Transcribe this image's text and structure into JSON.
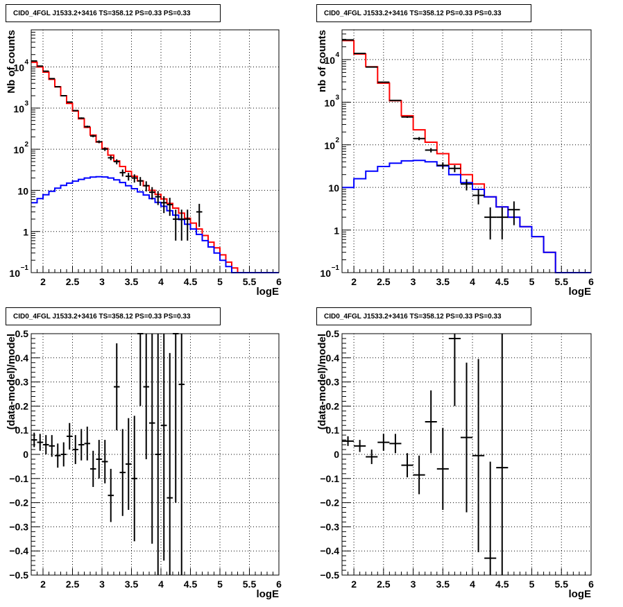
{
  "chart_data": [
    {
      "id": "counts-left",
      "type": "line",
      "title": "CID0_4FGL J1533.2+3416 TS=358.12 PS=0.33 PS=0.33",
      "xlabel": "logE",
      "ylabel": "Nb of counts",
      "xlim": [
        1.8,
        6.0
      ],
      "ylim": [
        0.1,
        80000
      ],
      "yscale": "log",
      "grid": true,
      "x_ticks": [
        2,
        2.5,
        3,
        3.5,
        4,
        4.5,
        5,
        5.5,
        6
      ],
      "x_tick_labels": [
        "2",
        "2.5",
        "3",
        "3.5",
        "4",
        "4.5",
        "5",
        "5.5",
        "6"
      ],
      "y_ticks": [
        0.1,
        1,
        10,
        100,
        1000,
        10000
      ],
      "y_tick_labels": [
        [
          "10",
          "−1"
        ],
        [
          "1",
          ""
        ],
        [
          "10",
          ""
        ],
        [
          "10",
          "2"
        ],
        [
          "10",
          "3"
        ],
        [
          "10",
          "4"
        ]
      ],
      "bin_width": 0.1,
      "series": [
        {
          "color": "#ff0000",
          "style": "step",
          "x": [
            1.8,
            1.9,
            2.0,
            2.1,
            2.2,
            2.3,
            2.4,
            2.5,
            2.6,
            2.7,
            2.8,
            2.9,
            3.0,
            3.1,
            3.2,
            3.3,
            3.4,
            3.5,
            3.6,
            3.7,
            3.8,
            3.9,
            4.0,
            4.1,
            4.2,
            4.3,
            4.4,
            4.5,
            4.6,
            4.7,
            4.8,
            4.9,
            5.0,
            5.1,
            5.2,
            5.3,
            5.4,
            5.5,
            5.6,
            5.7,
            5.8,
            5.9
          ],
          "values": [
            13000,
            10000,
            7500,
            5000,
            3300,
            2000,
            1300,
            850,
            550,
            340,
            220,
            150,
            105,
            72,
            52,
            38,
            29,
            22,
            17,
            13,
            10,
            8,
            6.2,
            4.8,
            3.7,
            2.8,
            2.1,
            1.6,
            1.15,
            0.8,
            0.55,
            0.4,
            0.27,
            0.18,
            0.13,
            0.1,
            0.1,
            0.1,
            0.1,
            0.1,
            0.1,
            0.1
          ]
        },
        {
          "color": "#0000ff",
          "style": "step",
          "x": [
            1.8,
            1.9,
            2.0,
            2.1,
            2.2,
            2.3,
            2.4,
            2.5,
            2.6,
            2.7,
            2.8,
            2.9,
            3.0,
            3.1,
            3.2,
            3.3,
            3.4,
            3.5,
            3.6,
            3.7,
            3.8,
            3.9,
            4.0,
            4.1,
            4.2,
            4.3,
            4.4,
            4.5,
            4.6,
            4.7,
            4.8,
            4.9,
            5.0,
            5.1,
            5.2,
            5.3,
            5.4,
            5.5,
            5.6,
            5.7,
            5.8,
            5.9
          ],
          "values": [
            5,
            6.3,
            7.8,
            9.5,
            11.3,
            13.2,
            15,
            16.8,
            18.5,
            20,
            21,
            21.5,
            21.2,
            20,
            18,
            15.5,
            13,
            11,
            9.2,
            7.7,
            6.3,
            5.1,
            4.1,
            3.2,
            2.5,
            1.95,
            1.5,
            1.15,
            0.85,
            0.6,
            0.42,
            0.3,
            0.2,
            0.14,
            0.1,
            0.1,
            0.1,
            0.1,
            0.1,
            0.1,
            0.1,
            0.1
          ]
        },
        {
          "color": "#000000",
          "style": "errorbar",
          "x": [
            1.85,
            1.95,
            2.05,
            2.15,
            2.25,
            2.35,
            2.45,
            2.55,
            2.65,
            2.75,
            2.85,
            2.95,
            3.05,
            3.15,
            3.25,
            3.35,
            3.45,
            3.55,
            3.65,
            3.75,
            3.85,
            3.95,
            4.05,
            4.15,
            4.25,
            4.35,
            4.45,
            4.65
          ],
          "values": [
            14000,
            10500,
            7900,
            5200,
            3300,
            2000,
            1400,
            870,
            570,
            355,
            210,
            152,
            101,
            62,
            50,
            27,
            22,
            20,
            17,
            13,
            9,
            7,
            5,
            4.5,
            2,
            2,
            2,
            3
          ],
          "errors": [
            120,
            100,
            90,
            70,
            58,
            45,
            37,
            30,
            24,
            19,
            14,
            12,
            10,
            8,
            7,
            5.2,
            4.7,
            4.5,
            4.1,
            3.6,
            3,
            2.6,
            2.2,
            2.1,
            1.4,
            1.4,
            1.4,
            1.7
          ]
        }
      ]
    },
    {
      "id": "counts-right",
      "type": "line",
      "title": "CID0_4FGL J1533.2+3416 TS=358.12 PS=0.33 PS=0.33",
      "xlabel": "logE",
      "ylabel": "nb of counts",
      "xlim": [
        1.8,
        6.0
      ],
      "ylim": [
        0.1,
        50000
      ],
      "yscale": "log",
      "grid": true,
      "x_ticks": [
        2,
        2.5,
        3,
        3.5,
        4,
        4.5,
        5,
        5.5,
        6
      ],
      "x_tick_labels": [
        "2",
        "2.5",
        "3",
        "3.5",
        "4",
        "4.5",
        "5",
        "5.5",
        "6"
      ],
      "y_ticks": [
        0.1,
        1,
        10,
        100,
        1000,
        10000
      ],
      "y_tick_labels": [
        [
          "10",
          "−1"
        ],
        [
          "1",
          ""
        ],
        [
          "10",
          ""
        ],
        [
          "10",
          "2"
        ],
        [
          "10",
          "3"
        ],
        [
          "10",
          "4"
        ]
      ],
      "bin_width": 0.2,
      "series": [
        {
          "color": "#ff0000",
          "style": "step",
          "x": [
            1.8,
            2.0,
            2.2,
            2.4,
            2.6,
            2.8,
            3.0,
            3.2,
            3.4,
            3.6,
            3.8,
            4.0,
            4.2,
            4.4,
            4.6,
            4.8,
            5.0,
            5.2,
            5.4,
            5.6,
            5.8
          ],
          "values": [
            28000,
            13500,
            6800,
            2800,
            1080,
            480,
            225,
            115,
            62,
            35,
            20,
            12,
            6,
            3.5,
            2,
            1.2,
            0.7,
            0.3,
            0.1,
            0.1,
            0.1
          ]
        },
        {
          "color": "#0000ff",
          "style": "step",
          "x": [
            1.8,
            2.0,
            2.2,
            2.4,
            2.6,
            2.8,
            3.0,
            3.2,
            3.4,
            3.6,
            3.8,
            4.0,
            4.2,
            4.4,
            4.6,
            4.8,
            5.0,
            5.2,
            5.4,
            5.6,
            5.8
          ],
          "values": [
            10,
            16,
            24,
            31,
            37,
            42,
            43,
            40,
            32,
            20,
            13,
            9,
            6,
            3.5,
            2,
            1.2,
            0.7,
            0.3,
            0.1,
            0.1,
            0.1
          ]
        },
        {
          "color": "#000000",
          "style": "errorbar",
          "x": [
            1.9,
            2.1,
            2.3,
            2.5,
            2.7,
            2.9,
            3.1,
            3.3,
            3.5,
            3.7,
            3.9,
            4.1,
            4.3,
            4.5,
            4.7
          ],
          "values": [
            29000,
            14000,
            6700,
            2950,
            1100,
            450,
            140,
            75,
            33,
            28,
            12,
            6.5,
            2,
            2,
            3
          ],
          "errors": [
            170,
            118,
            82,
            54,
            33,
            21,
            12,
            8.7,
            5.7,
            5.3,
            3.5,
            2.5,
            1.4,
            1.4,
            1.7
          ]
        }
      ]
    },
    {
      "id": "residual-left",
      "type": "scatter",
      "title": "CID0_4FGL J1533.2+3416 TS=358.12 PS=0.33 PS=0.33",
      "xlabel": "logE",
      "ylabel": "(data-model)/model",
      "xlim": [
        1.8,
        6.0
      ],
      "ylim": [
        -0.5,
        0.5
      ],
      "yscale": "linear",
      "grid": true,
      "x_ticks": [
        2,
        2.5,
        3,
        3.5,
        4,
        4.5,
        5,
        5.5,
        6
      ],
      "x_tick_labels": [
        "2",
        "2.5",
        "3",
        "3.5",
        "4",
        "4.5",
        "5",
        "5.5",
        "6"
      ],
      "y_ticks": [
        -0.5,
        -0.4,
        -0.3,
        -0.2,
        -0.1,
        0,
        0.1,
        0.2,
        0.3,
        0.4,
        0.5
      ],
      "y_tick_labels": [
        "−0.5",
        "−0.4",
        "−0.3",
        "−0.2",
        "−0.1",
        "0",
        "0.1",
        "0.2",
        "0.3",
        "0.4",
        "0.5"
      ],
      "bin_width": 0.1,
      "series": [
        {
          "color": "#000000",
          "style": "errorbar",
          "x": [
            1.85,
            1.95,
            2.05,
            2.15,
            2.25,
            2.35,
            2.45,
            2.55,
            2.65,
            2.75,
            2.85,
            2.95,
            3.05,
            3.15,
            3.25,
            3.35,
            3.45,
            3.55,
            3.65,
            3.75,
            3.85,
            3.95,
            4.05,
            4.15,
            4.25,
            4.35
          ],
          "values": [
            0.06,
            0.05,
            0.04,
            0.035,
            -0.005,
            0.0,
            0.075,
            0.02,
            0.04,
            0.045,
            -0.06,
            -0.02,
            -0.03,
            -0.17,
            0.28,
            -0.075,
            -0.04,
            -0.1,
            0.5,
            0.28,
            0.13,
            0.0,
            0.12,
            -0.18,
            0.5,
            0.29
          ],
          "errors": [
            0.03,
            0.035,
            0.04,
            0.045,
            0.05,
            0.05,
            0.055,
            0.06,
            0.065,
            0.07,
            0.075,
            0.08,
            0.09,
            0.11,
            0.18,
            0.18,
            0.19,
            0.26,
            0.3,
            0.3,
            0.5,
            0.5,
            0.56,
            0.6,
            0.7,
            0.8
          ]
        }
      ]
    },
    {
      "id": "residual-right",
      "type": "scatter",
      "title": "CID0_4FGL J1533.2+3416 TS=358.12 PS=0.33 PS=0.33",
      "xlabel": "logE",
      "ylabel": "(data-model)/model",
      "xlim": [
        1.8,
        6.0
      ],
      "ylim": [
        -0.5,
        0.5
      ],
      "yscale": "linear",
      "grid": true,
      "x_ticks": [
        2,
        2.5,
        3,
        3.5,
        4,
        4.5,
        5,
        5.5,
        6
      ],
      "x_tick_labels": [
        "2",
        "2.5",
        "3",
        "3.5",
        "4",
        "4.5",
        "5",
        "5.5",
        "6"
      ],
      "y_ticks": [
        -0.5,
        -0.4,
        -0.3,
        -0.2,
        -0.1,
        0,
        0.1,
        0.2,
        0.3,
        0.4,
        0.5
      ],
      "y_tick_labels": [
        "−0.5",
        "−0.4",
        "−0.3",
        "−0.2",
        "−0.1",
        "0",
        "0.1",
        "0.2",
        "0.3",
        "0.4",
        "0.5"
      ],
      "bin_width": 0.2,
      "series": [
        {
          "color": "#000000",
          "style": "errorbar",
          "x": [
            1.9,
            2.1,
            2.3,
            2.5,
            2.7,
            2.9,
            3.1,
            3.3,
            3.5,
            3.7,
            3.9,
            4.1,
            4.3,
            4.5
          ],
          "values": [
            0.055,
            0.035,
            -0.01,
            0.05,
            0.045,
            -0.045,
            -0.085,
            0.135,
            -0.06,
            0.48,
            0.07,
            -0.005,
            -0.43,
            -0.055
          ],
          "errors": [
            0.02,
            0.025,
            0.03,
            0.035,
            0.04,
            0.05,
            0.08,
            0.13,
            0.17,
            0.28,
            0.31,
            0.4,
            0.4,
            0.7
          ]
        }
      ]
    }
  ]
}
